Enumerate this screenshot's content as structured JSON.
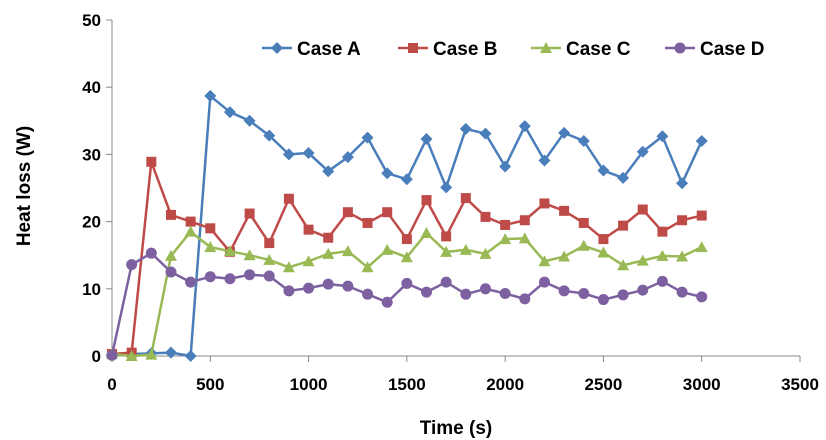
{
  "chart_data": {
    "type": "line",
    "xlabel": "Time (s)",
    "ylabel": "Heat loss (W)",
    "xlim": [
      0,
      3500
    ],
    "ylim": [
      0,
      50
    ],
    "xticks": [
      0,
      500,
      1000,
      1500,
      2000,
      2500,
      3000,
      3500
    ],
    "yticks": [
      0,
      10,
      20,
      30,
      40,
      50
    ],
    "grid": false,
    "legend": "top-right",
    "x": [
      0,
      100,
      200,
      300,
      400,
      500,
      600,
      700,
      800,
      900,
      1000,
      1100,
      1200,
      1300,
      1400,
      1500,
      1600,
      1700,
      1800,
      1900,
      2000,
      2100,
      2200,
      2300,
      2400,
      2500,
      2600,
      2700,
      2800,
      2900,
      3000
    ],
    "series": [
      {
        "name": "Case A",
        "color": "#4a7ebb",
        "marker": "diamond",
        "values": [
          0.2,
          0.3,
          0.4,
          0.5,
          0.0,
          38.7,
          36.3,
          35.0,
          32.8,
          30.0,
          30.2,
          27.5,
          29.6,
          32.5,
          27.2,
          26.3,
          32.3,
          25.1,
          33.8,
          33.1,
          28.2,
          34.2,
          29.1,
          33.2,
          32.0,
          27.6,
          26.5,
          30.4,
          32.7,
          25.7,
          32.0
        ]
      },
      {
        "name": "Case B",
        "color": "#be4b48",
        "marker": "square",
        "values": [
          0.3,
          0.5,
          28.9,
          21.0,
          20.0,
          19.0,
          15.5,
          21.2,
          16.8,
          23.4,
          18.8,
          17.6,
          21.4,
          19.8,
          21.4,
          17.4,
          23.2,
          17.8,
          23.5,
          20.7,
          19.5,
          20.2,
          22.7,
          21.6,
          19.8,
          17.4,
          19.4,
          21.8,
          18.5,
          20.2,
          20.9
        ]
      },
      {
        "name": "Case C",
        "color": "#98b954",
        "marker": "triangle",
        "values": [
          0.3,
          0.0,
          0.2,
          14.9,
          18.5,
          16.2,
          15.6,
          15.0,
          14.3,
          13.2,
          14.1,
          15.2,
          15.6,
          13.2,
          15.8,
          14.7,
          18.3,
          15.5,
          15.8,
          15.2,
          17.4,
          17.5,
          14.1,
          14.8,
          16.4,
          15.4,
          13.5,
          14.2,
          14.9,
          14.8,
          16.2
        ]
      },
      {
        "name": "Case D",
        "color": "#7d60a0",
        "marker": "circle",
        "values": [
          0.1,
          13.6,
          15.3,
          12.5,
          11.0,
          11.8,
          11.5,
          12.1,
          11.9,
          9.7,
          10.1,
          10.7,
          10.4,
          9.2,
          8.0,
          10.8,
          9.5,
          11.0,
          9.2,
          10.0,
          9.3,
          8.5,
          11.0,
          9.7,
          9.3,
          8.4,
          9.1,
          9.8,
          11.1,
          9.5,
          8.8
        ]
      }
    ]
  }
}
